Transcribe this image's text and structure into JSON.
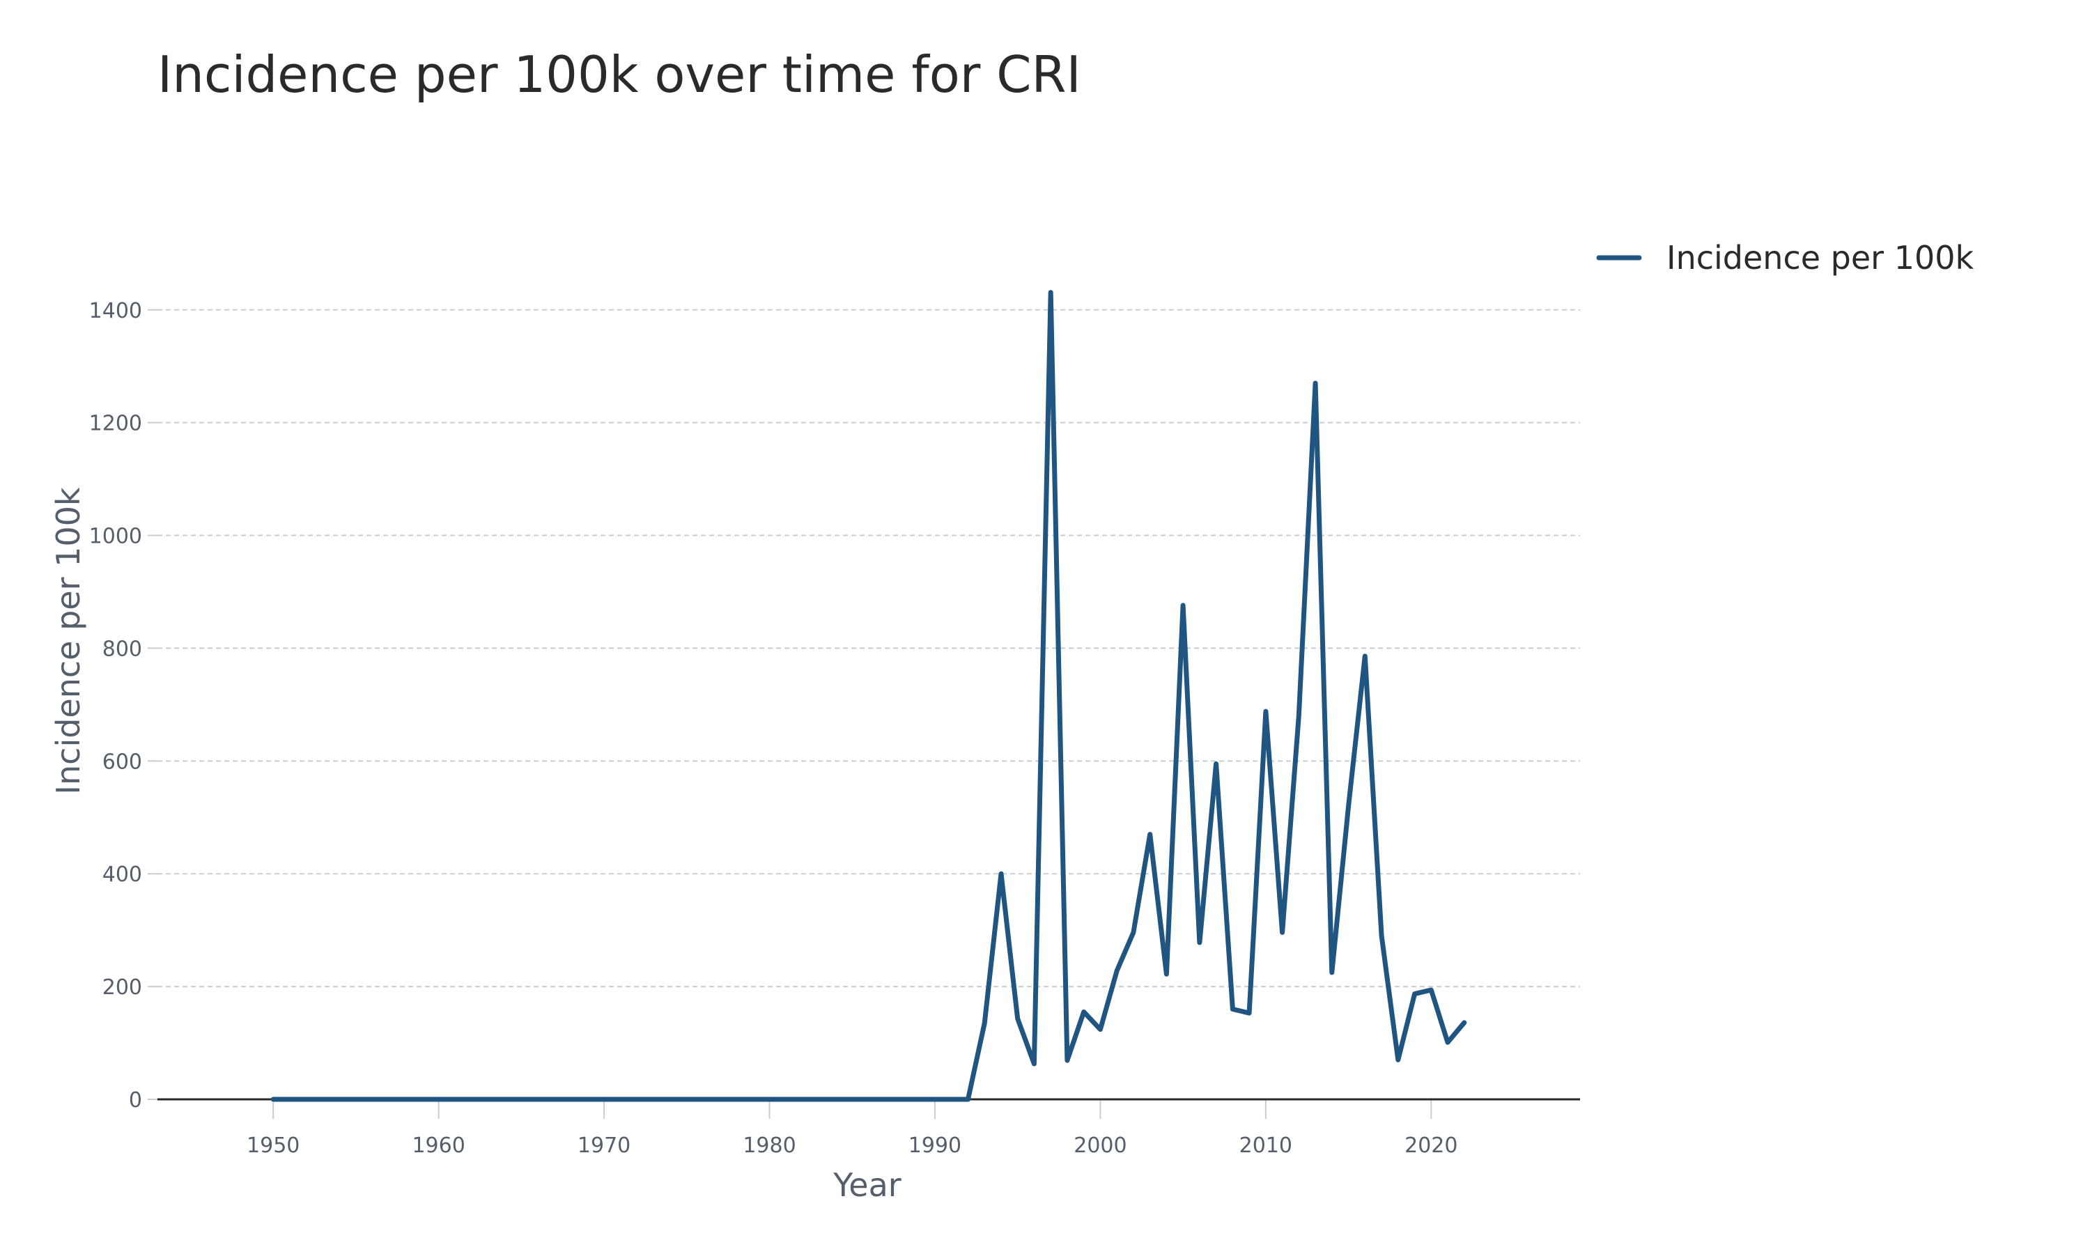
{
  "chart_data": {
    "type": "line",
    "title": "Incidence per 100k over time for CRI",
    "xlabel": "Year",
    "ylabel": "Incidence per 100k",
    "xlim": [
      1943,
      2029
    ],
    "ylim": [
      0,
      1480
    ],
    "x_ticks": [
      1950,
      1960,
      1970,
      1980,
      1990,
      2000,
      2010,
      2020
    ],
    "y_ticks": [
      0,
      200,
      400,
      600,
      800,
      1000,
      1200,
      1400
    ],
    "grid": true,
    "legend_position": "top-right",
    "series": [
      {
        "name": "Incidence per 100k",
        "color": "#1f5580",
        "x": [
          1950,
          1951,
          1952,
          1953,
          1954,
          1955,
          1956,
          1957,
          1958,
          1959,
          1960,
          1961,
          1962,
          1963,
          1964,
          1965,
          1966,
          1967,
          1968,
          1969,
          1970,
          1971,
          1972,
          1973,
          1974,
          1975,
          1976,
          1977,
          1978,
          1979,
          1980,
          1981,
          1982,
          1983,
          1984,
          1985,
          1986,
          1987,
          1988,
          1989,
          1990,
          1991,
          1992,
          1993,
          1994,
          1995,
          1996,
          1997,
          1998,
          1999,
          2000,
          2001,
          2002,
          2003,
          2004,
          2005,
          2006,
          2007,
          2008,
          2009,
          2010,
          2011,
          2012,
          2013,
          2014,
          2015,
          2016,
          2017,
          2018,
          2019,
          2020,
          2021,
          2022
        ],
        "y": [
          0,
          0,
          0,
          0,
          0,
          0,
          0,
          0,
          0,
          0,
          0,
          0,
          0,
          0,
          0,
          0,
          0,
          0,
          0,
          0,
          0,
          0,
          0,
          0,
          0,
          0,
          0,
          0,
          0,
          0,
          0,
          0,
          0,
          0,
          0,
          0,
          0,
          0,
          0,
          0,
          0,
          0,
          0,
          135,
          400,
          143,
          63,
          1431,
          69,
          155,
          124,
          228,
          296,
          470,
          222,
          876,
          278,
          595,
          160,
          153,
          688,
          296,
          680,
          1270,
          225,
          520,
          786,
          290,
          70,
          187,
          194,
          101,
          136
        ]
      }
    ]
  }
}
